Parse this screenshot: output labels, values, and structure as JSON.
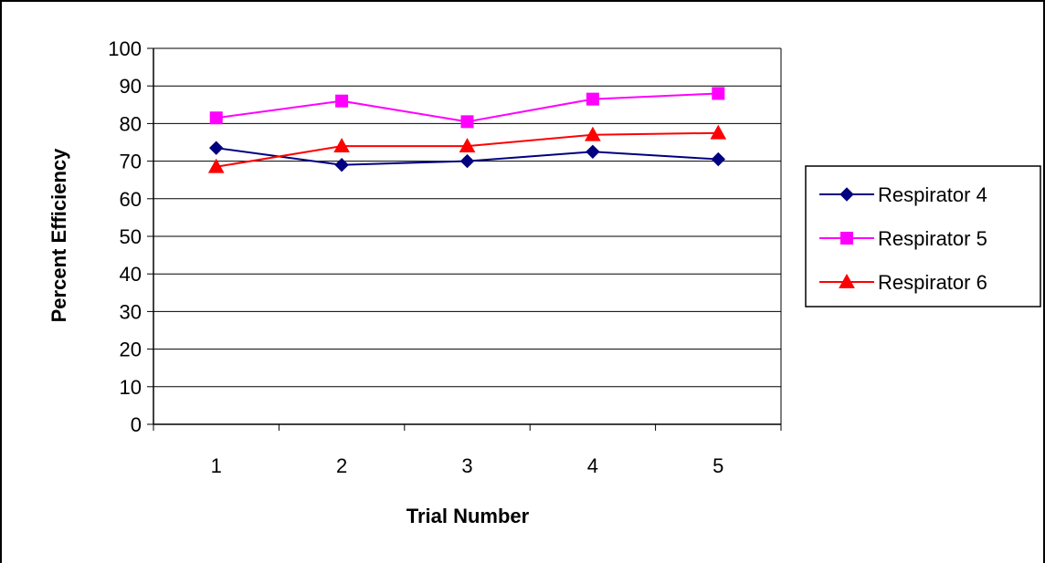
{
  "chart_data": {
    "type": "line",
    "title": "",
    "xlabel": "Trial Number",
    "ylabel": "Percent Efficiency",
    "categories": [
      "1",
      "2",
      "3",
      "4",
      "5"
    ],
    "ylim": [
      0,
      100
    ],
    "yticks": [
      0,
      10,
      20,
      30,
      40,
      50,
      60,
      70,
      80,
      90,
      100
    ],
    "grid": "horizontal",
    "legend_position": "right",
    "series": [
      {
        "name": "Respirator 4",
        "color": "#000080",
        "marker": "diamond",
        "values": [
          73.5,
          69,
          70,
          72.5,
          70.5
        ]
      },
      {
        "name": "Respirator 5",
        "color": "#ff00ff",
        "marker": "square",
        "values": [
          81.5,
          86,
          80.5,
          86.5,
          88
        ]
      },
      {
        "name": "Respirator 6",
        "color": "#ff0000",
        "marker": "triangle",
        "values": [
          68.5,
          74,
          74,
          77,
          77.5
        ]
      }
    ]
  }
}
